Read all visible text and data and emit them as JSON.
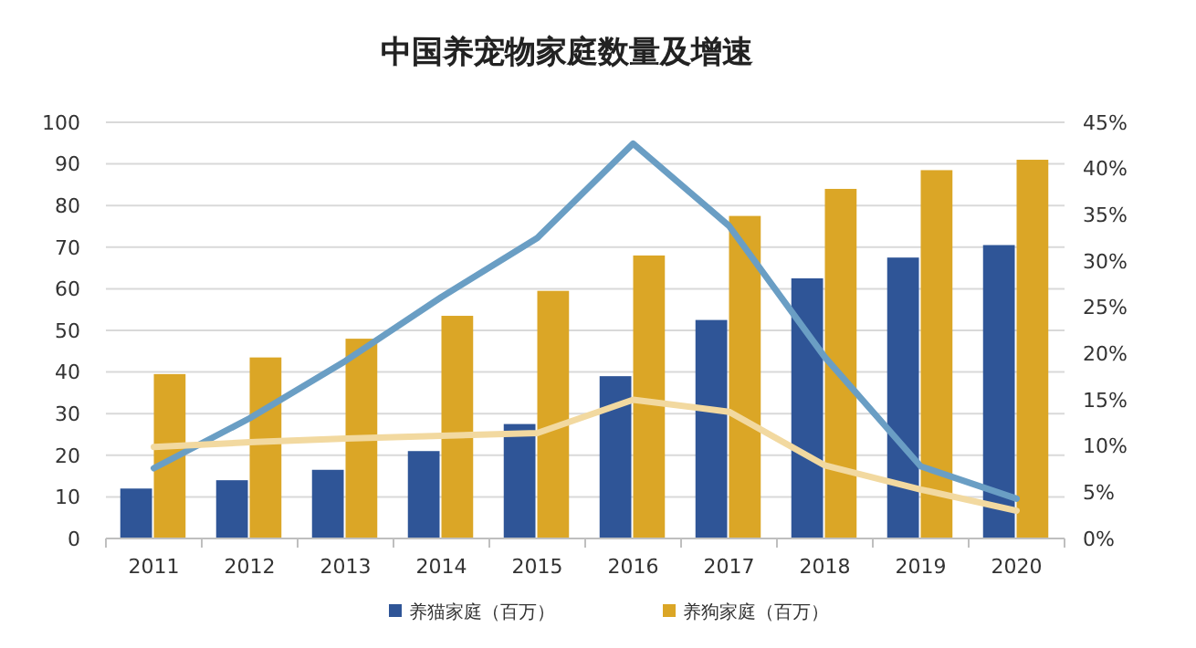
{
  "chart_data": {
    "type": "bar",
    "title": "中国养宠物家庭数量及增速",
    "categories": [
      "2011",
      "2012",
      "2013",
      "2014",
      "2015",
      "2016",
      "2017",
      "2018",
      "2019",
      "2020"
    ],
    "series": [
      {
        "name": "养猫家庭（百万）",
        "color": "#2f5597",
        "values": [
          12,
          14,
          16.5,
          21,
          27.5,
          39,
          52.5,
          62.5,
          67.5,
          70.5
        ]
      },
      {
        "name": "养狗家庭（百万）",
        "color": "#dba626",
        "values": [
          39.5,
          43.5,
          48,
          53.5,
          59.5,
          68,
          77.5,
          84,
          88.5,
          91
        ]
      },
      {
        "type": "line",
        "axis": "y2",
        "color": "#6a9ec4",
        "values": [
          7.6,
          13,
          19.2,
          26.1,
          32.5,
          42.7,
          33.8,
          19.6,
          7.8,
          4.3
        ]
      },
      {
        "type": "line",
        "axis": "y2",
        "color": "#f2d9a0",
        "values": [
          9.9,
          10.4,
          10.8,
          11.1,
          11.4,
          15,
          13.7,
          7.9,
          5.3,
          3
        ]
      }
    ],
    "ylim": [
      0,
      100
    ],
    "yticks": [
      0,
      10,
      20,
      30,
      40,
      50,
      60,
      70,
      80,
      90,
      100
    ],
    "y2lim": [
      0,
      45
    ],
    "y2ticks": [
      {
        "value": 0,
        "label": "0%"
      },
      {
        "value": 5,
        "label": "5%"
      },
      {
        "value": 10,
        "label": "10%"
      },
      {
        "value": 15,
        "label": "15%"
      },
      {
        "value": 20,
        "label": "20%"
      },
      {
        "value": 25,
        "label": "25%"
      },
      {
        "value": 30,
        "label": "30%"
      },
      {
        "value": 35,
        "label": "35%"
      },
      {
        "value": 40,
        "label": "40%"
      },
      {
        "value": 45,
        "label": "45%"
      }
    ],
    "grid": "y",
    "legend": "bottom",
    "line_style": "solid",
    "marker": "none"
  }
}
